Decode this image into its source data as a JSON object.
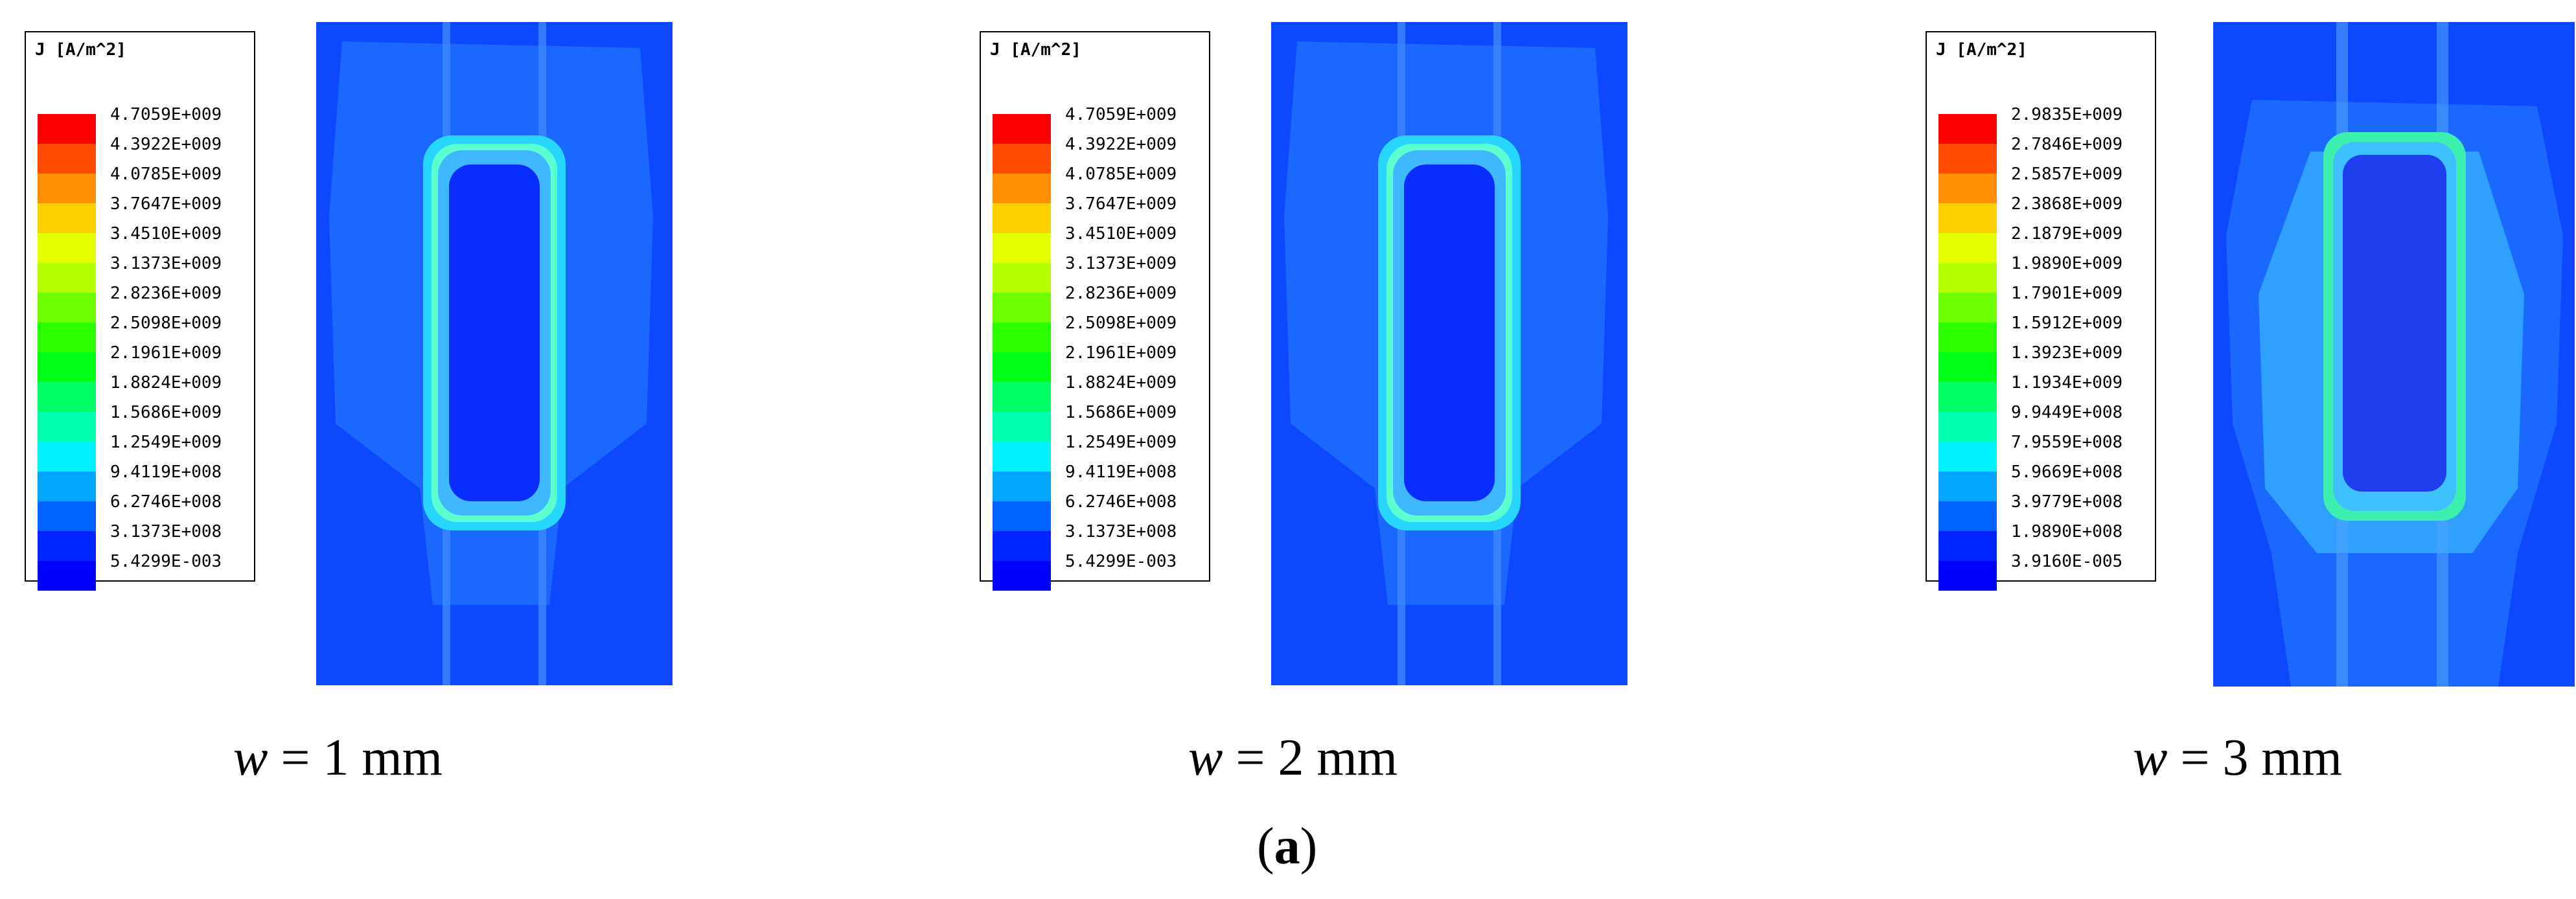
{
  "panels": [
    {
      "legend_title": "J [A/m^2]",
      "legend_labels": [
        "4.7059E+009",
        "4.3922E+009",
        "4.0785E+009",
        "3.7647E+009",
        "3.4510E+009",
        "3.1373E+009",
        "2.8236E+009",
        "2.5098E+009",
        "2.1961E+009",
        "1.8824E+009",
        "1.5686E+009",
        "1.2549E+009",
        "9.4119E+008",
        "6.2746E+008",
        "3.1373E+008",
        "5.4299E-003"
      ],
      "caption_var": "w",
      "caption_value": " = 1 mm"
    },
    {
      "legend_title": "J [A/m^2]",
      "legend_labels": [
        "4.7059E+009",
        "4.3922E+009",
        "4.0785E+009",
        "3.7647E+009",
        "3.4510E+009",
        "3.1373E+009",
        "2.8236E+009",
        "2.5098E+009",
        "2.1961E+009",
        "1.8824E+009",
        "1.5686E+009",
        "1.2549E+009",
        "9.4119E+008",
        "6.2746E+008",
        "3.1373E+008",
        "5.4299E-003"
      ],
      "caption_var": "w",
      "caption_value": " = 2 mm"
    },
    {
      "legend_title": "J [A/m^2]",
      "legend_labels": [
        "2.9835E+009",
        "2.7846E+009",
        "2.5857E+009",
        "2.3868E+009",
        "2.1879E+009",
        "1.9890E+009",
        "1.7901E+009",
        "1.5912E+009",
        "1.3923E+009",
        "1.1934E+009",
        "9.9449E+008",
        "7.9559E+008",
        "5.9669E+008",
        "3.9779E+008",
        "1.9890E+008",
        "3.9160E-005"
      ],
      "caption_var": "w",
      "caption_value": " = 3 mm"
    }
  ],
  "colormap": [
    "#ff0000",
    "#ff4a00",
    "#ff8e00",
    "#ffd000",
    "#e6ff00",
    "#b4ff00",
    "#6dff00",
    "#2bff00",
    "#00ff14",
    "#00ff66",
    "#00ffae",
    "#00f2ff",
    "#00a6ff",
    "#0062ff",
    "#0026ff",
    "#0000ff"
  ],
  "figure_label_open": "(",
  "figure_label_letter": "a",
  "figure_label_close": ")"
}
